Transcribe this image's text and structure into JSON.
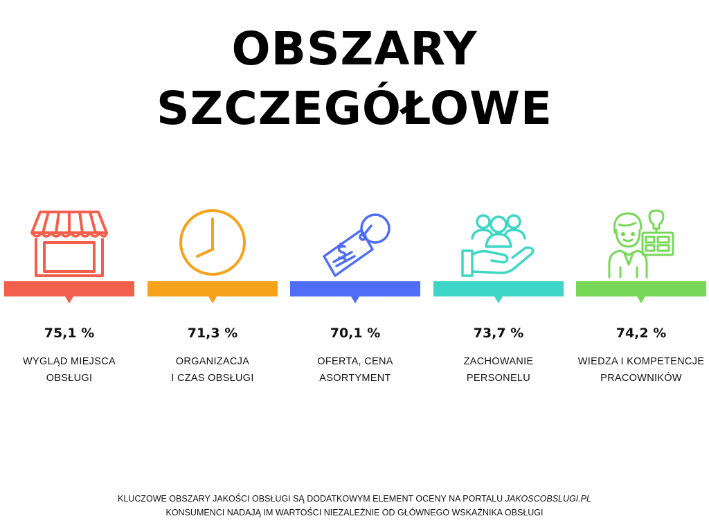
{
  "title": {
    "line1": "OBSZARY",
    "line2": "SZCZEGÓŁOWE"
  },
  "areas": [
    {
      "percent": "75,1 %",
      "label_line1": "WYGLĄD MIEJSCA",
      "label_line2": "OBSŁUGI",
      "color": "#f25f4c",
      "icon": "storefront-icon"
    },
    {
      "percent": "71,3 %",
      "label_line1": "ORGANIZACJA",
      "label_line2": "I CZAS OBSŁUGI",
      "color": "#f7a21b",
      "icon": "clock-icon"
    },
    {
      "percent": "70,1 %",
      "label_line1": "OFERTA, CENA",
      "label_line2": "ASORTYMENT",
      "color": "#4f6ef7",
      "icon": "price-tag-icon"
    },
    {
      "percent": "73,7 %",
      "label_line1": "ZACHOWANIE",
      "label_line2": "PERSONELU",
      "color": "#3ed6c6",
      "icon": "hand-people-icon"
    },
    {
      "percent": "74,2 %",
      "label_line1": "WIEDZA I KOMPETENCJE",
      "label_line2": "PRACOWNIKÓW",
      "color": "#76d856",
      "icon": "employee-idea-icon"
    }
  ],
  "footer": {
    "line1_text": "KLUCZOWE OBSZARY JAKOŚCI OBSŁUGI SĄ DODATKOWYM ELEMENT OCENY NA PORTALU ",
    "line1_link": "JAKOSCOBSLUGI.PL",
    "line2": "KONSUMENCI NADAJĄ IM WARTOŚCI NIEZALEŻNIE OD GŁÓWNEGO WSKAŹNIKA OBSŁUGI"
  }
}
